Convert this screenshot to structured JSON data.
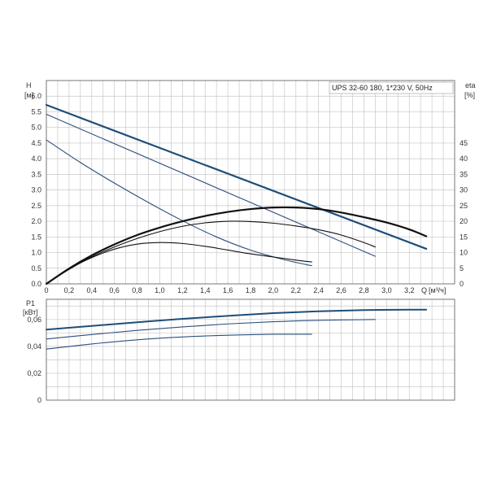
{
  "chart_data": [
    {
      "type": "line",
      "title": "UPS 32-60 180, 1*230 V, 50Hz",
      "ylabel": "H",
      "yunit": "[м]",
      "y2label": "eta",
      "y2unit": "[%]",
      "xlabel": "Q",
      "xunit": "[м³/ч]",
      "xlim": [
        0,
        3.6
      ],
      "ylim": [
        0,
        6.5
      ],
      "y2lim": [
        0,
        65
      ],
      "grid": true,
      "x_ticks": [
        "0",
        "0,2",
        "0,4",
        "0,6",
        "0,8",
        "1,0",
        "1,2",
        "1,4",
        "1,6",
        "1,8",
        "2,0",
        "2,2",
        "2,4",
        "2,6",
        "2,8",
        "3,0",
        "3,2"
      ],
      "x_tick_values": [
        0,
        0.2,
        0.4,
        0.6,
        0.8,
        1.0,
        1.2,
        1.4,
        1.6,
        1.8,
        2.0,
        2.2,
        2.4,
        2.6,
        2.8,
        3.0,
        3.2
      ],
      "y_ticks": [
        "0.0",
        "0.5",
        "1.0",
        "1.5",
        "2.0",
        "2.5",
        "3.0",
        "3.5",
        "4.0",
        "4.5",
        "5.0",
        "5.5",
        "6.0"
      ],
      "y_tick_values": [
        0,
        0.5,
        1.0,
        1.5,
        2.0,
        2.5,
        3.0,
        3.5,
        4.0,
        4.5,
        5.0,
        5.5,
        6.0
      ],
      "y2_ticks": [
        "0",
        "5",
        "10",
        "15",
        "20",
        "25",
        "30",
        "35",
        "40",
        "45"
      ],
      "y2_tick_values": [
        0,
        5,
        10,
        15,
        20,
        25,
        30,
        35,
        40,
        45
      ],
      "series": [
        {
          "axis": "left",
          "color": "#1f4e79",
          "width": 2.2,
          "x": [
            0,
            3.35
          ],
          "y": [
            5.72,
            1.12
          ]
        },
        {
          "axis": "left",
          "color": "#2c4f7c",
          "width": 1.1,
          "x": [
            0,
            2.9
          ],
          "y": [
            5.42,
            0.88
          ]
        },
        {
          "axis": "left",
          "color": "#2c4f7c",
          "width": 1.1,
          "x": [
            0,
            0.3,
            0.6,
            0.9,
            1.2,
            1.5,
            1.8,
            2.1,
            2.34
          ],
          "y": [
            4.6,
            3.88,
            3.22,
            2.6,
            2.02,
            1.5,
            1.08,
            0.77,
            0.58
          ]
        },
        {
          "axis": "right",
          "color": "#111111",
          "width": 2.2,
          "x": [
            0,
            0.2,
            0.4,
            0.6,
            0.8,
            1.0,
            1.2,
            1.4,
            1.6,
            1.8,
            2.0,
            2.2,
            2.4,
            2.6,
            2.8,
            3.0,
            3.2,
            3.35
          ],
          "y": [
            0,
            4.9,
            9.1,
            12.6,
            15.6,
            18.0,
            20.0,
            21.7,
            23.0,
            23.9,
            24.4,
            24.4,
            23.9,
            22.8,
            21.3,
            19.6,
            17.4,
            15.2
          ]
        },
        {
          "axis": "right",
          "color": "#111111",
          "width": 1.1,
          "x": [
            0,
            0.2,
            0.4,
            0.6,
            0.8,
            1.0,
            1.2,
            1.4,
            1.6,
            1.8,
            2.0,
            2.2,
            2.4,
            2.6,
            2.8,
            2.9
          ],
          "y": [
            0,
            4.6,
            8.6,
            11.8,
            14.5,
            16.7,
            18.4,
            19.5,
            20.0,
            19.9,
            19.4,
            18.5,
            17.3,
            15.6,
            13.2,
            11.8
          ]
        },
        {
          "axis": "right",
          "color": "#111111",
          "width": 1.1,
          "x": [
            0,
            0.2,
            0.4,
            0.6,
            0.8,
            1.0,
            1.2,
            1.4,
            1.6,
            1.8,
            2.0,
            2.2,
            2.34
          ],
          "y": [
            0,
            4.8,
            8.4,
            11.1,
            12.7,
            13.2,
            12.9,
            12.0,
            10.8,
            9.6,
            8.6,
            7.6,
            7.0
          ]
        }
      ]
    },
    {
      "type": "line",
      "ylabel": "P1",
      "yunit": "[кВт]",
      "xlim": [
        0,
        3.6
      ],
      "ylim": [
        0,
        0.075
      ],
      "grid": true,
      "y_ticks": [
        "0",
        "0,02",
        "0,04",
        "0,06"
      ],
      "y_tick_values": [
        0,
        0.02,
        0.04,
        0.06
      ],
      "series": [
        {
          "color": "#1f4e79",
          "width": 2.0,
          "x": [
            0,
            0.4,
            0.8,
            1.2,
            1.6,
            2.0,
            2.4,
            2.8,
            3.2,
            3.35
          ],
          "y": [
            0.0525,
            0.0552,
            0.0579,
            0.0605,
            0.0627,
            0.0647,
            0.0661,
            0.067,
            0.0673,
            0.0673
          ]
        },
        {
          "color": "#2c4f7c",
          "width": 1.1,
          "x": [
            0,
            0.4,
            0.8,
            1.2,
            1.6,
            2.0,
            2.4,
            2.9
          ],
          "y": [
            0.0455,
            0.0488,
            0.0519,
            0.0545,
            0.0567,
            0.0583,
            0.0594,
            0.06
          ]
        },
        {
          "color": "#2c4f7c",
          "width": 1.1,
          "x": [
            0,
            0.4,
            0.8,
            1.2,
            1.6,
            2.0,
            2.34
          ],
          "y": [
            0.038,
            0.0418,
            0.0449,
            0.047,
            0.0483,
            0.049,
            0.049
          ]
        }
      ]
    }
  ]
}
